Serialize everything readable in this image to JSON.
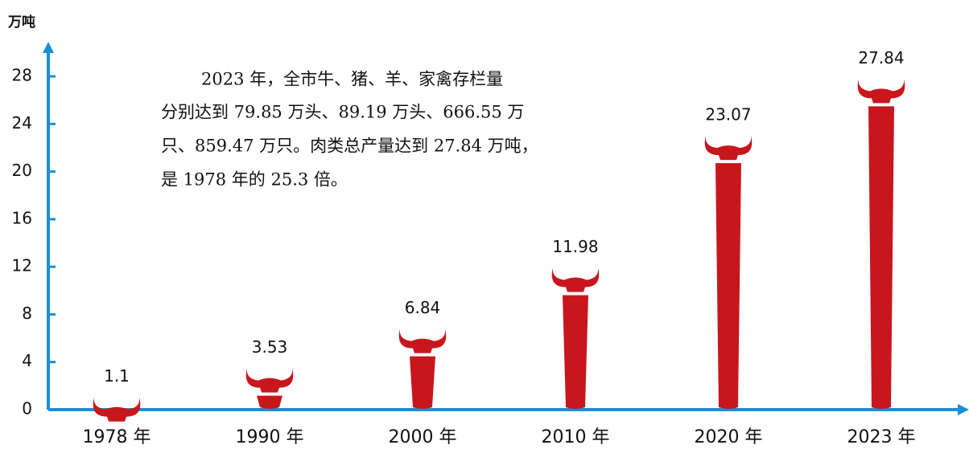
{
  "chart_data": {
    "type": "bar",
    "y_label": "万吨",
    "annotation": [
      "2023 年，全市牛、猪、羊、家禽存栏量",
      "分别达到 79.85 万头、89.19 万头、666.55 万",
      "只、859.47 万只。肉类总产量达到 27.84 万吨，",
      "是 1978 年的 25.3 倍。"
    ],
    "categories": [
      "1978 年",
      "1990 年",
      "2000 年",
      "2010 年",
      "2020 年",
      "2023 年"
    ],
    "values": [
      1.1,
      3.53,
      6.84,
      11.98,
      23.07,
      27.84
    ],
    "color": "#c8161d",
    "axis_color": "#1a8fd6",
    "ylim": [
      0,
      30
    ],
    "yticks": [
      0,
      4,
      8,
      12,
      16,
      20,
      24,
      28
    ]
  }
}
